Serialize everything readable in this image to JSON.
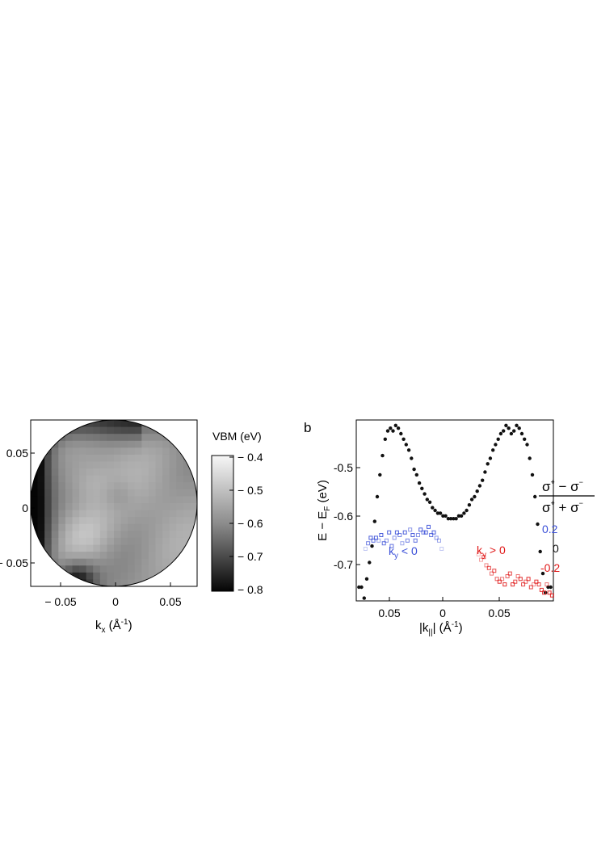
{
  "panel_a": {
    "xlabel_main": "k",
    "xlabel_sub": "x",
    "xlabel_unit_pre": " (Å",
    "xlabel_unit_exp": "-1",
    "xlabel_unit_post": ")",
    "xticks": [
      "− 0.05",
      "0",
      "0.05"
    ],
    "yticks": [
      "0.05",
      "0",
      "− 0.05"
    ],
    "colorbar_title": "VBM (eV)",
    "colorbar_ticks": [
      "− 0.4",
      "− 0.5",
      "− 0.6",
      "− 0.7",
      "− 0.8"
    ]
  },
  "panel_b": {
    "label": "b",
    "ylabel_main": "E − E",
    "ylabel_sub": "F",
    "ylabel_unit": " (eV)",
    "xlabel_pre": "|k",
    "xlabel_sub": "||",
    "xlabel_post": "| (Å",
    "xlabel_exp": "-1",
    "xlabel_end": ")",
    "yticks": [
      "-0.5",
      "-0.6",
      "-0.7"
    ],
    "xticks": [
      "0.05",
      "0",
      "0.05"
    ],
    "annot_left_main": "k",
    "annot_left_sub": "y",
    "annot_left_rest": " < 0",
    "annot_right_main": "k",
    "annot_right_sub": "y",
    "annot_right_rest": " > 0",
    "colors": {
      "blue": "#3a4fd8",
      "red": "#e01818",
      "black": "#111111"
    }
  },
  "pol_legend": {
    "num_a": "σ",
    "num_op": " − σ",
    "den_a": "σ",
    "den_op": " + σ",
    "sup_plus": "+",
    "sup_minus": "−",
    "vals": [
      "0.2",
      "0",
      "-0.2"
    ]
  },
  "chart_data": [
    {
      "type": "heatmap",
      "xlabel": "kx (Å-1)",
      "colorbar_label": "VBM (eV)",
      "colorbar_range": [
        -0.8,
        -0.4
      ],
      "xlim": [
        -0.08,
        0.08
      ],
      "ylim": [
        -0.08,
        0.08
      ],
      "grid_size": 24,
      "values": "VBM map inside circular k-region; darker = lower VBM (about -0.8 eV at left edge), lighter = about -0.4 eV"
    },
    {
      "type": "scatter",
      "xlabel": "|k||| (Å-1)",
      "ylabel": "E − EF (eV)",
      "xlim": [
        -0.075,
        0.075
      ],
      "ylim": [
        -0.75,
        -0.42
      ],
      "series": [
        {
          "name": "",
          "marker": "filled-circle",
          "x": [
            -0.073,
            -0.071,
            -0.069,
            -0.067,
            -0.065,
            -0.063,
            -0.061,
            -0.059,
            -0.057,
            -0.055,
            -0.053,
            -0.051,
            -0.049,
            -0.047,
            -0.045,
            -0.043,
            -0.041,
            -0.039,
            -0.037,
            -0.035,
            -0.033,
            -0.031,
            -0.029,
            -0.027,
            -0.025,
            -0.023,
            -0.021,
            -0.019,
            -0.017,
            -0.015,
            -0.013,
            -0.011,
            -0.009,
            -0.007,
            -0.005,
            -0.003,
            -0.001,
            0.001,
            0.003,
            0.005,
            0.007,
            0.009,
            0.011,
            0.013,
            0.015,
            0.017,
            0.019,
            0.021,
            0.023,
            0.025,
            0.027,
            0.029,
            0.031,
            0.033,
            0.035,
            0.037,
            0.039,
            0.041,
            0.043,
            0.045,
            0.047,
            0.049,
            0.051,
            0.053,
            0.055,
            0.057,
            0.059,
            0.061,
            0.063,
            0.065,
            0.067,
            0.069,
            0.071,
            0.073
          ],
          "y": [
            -0.725,
            -0.725,
            -0.745,
            -0.71,
            -0.68,
            -0.65,
            -0.605,
            -0.56,
            -0.52,
            -0.485,
            -0.455,
            -0.44,
            -0.435,
            -0.44,
            -0.43,
            -0.435,
            -0.445,
            -0.455,
            -0.465,
            -0.475,
            -0.49,
            -0.51,
            -0.52,
            -0.535,
            -0.545,
            -0.555,
            -0.565,
            -0.57,
            -0.58,
            -0.585,
            -0.59,
            -0.59,
            -0.595,
            -0.595,
            -0.6,
            -0.6,
            -0.6,
            -0.6,
            -0.595,
            -0.595,
            -0.59,
            -0.585,
            -0.575,
            -0.565,
            -0.56,
            -0.55,
            -0.54,
            -0.53,
            -0.515,
            -0.5,
            -0.49,
            -0.475,
            -0.465,
            -0.455,
            -0.445,
            -0.44,
            -0.43,
            -0.435,
            -0.445,
            -0.44,
            -0.43,
            -0.435,
            -0.445,
            -0.455,
            -0.465,
            -0.49,
            -0.52,
            -0.56,
            -0.61,
            -0.66,
            -0.7,
            -0.735,
            -0.725,
            -0.725
          ]
        },
        {
          "name": "ky < 0",
          "marker": "open-square",
          "color": "#3a4fd8",
          "x": [
            -0.068,
            -0.066,
            -0.064,
            -0.062,
            -0.06,
            -0.058,
            -0.056,
            -0.054,
            -0.052,
            -0.05,
            -0.048,
            -0.046,
            -0.044,
            -0.042,
            -0.04,
            -0.038,
            -0.036,
            -0.034,
            -0.032,
            -0.03,
            -0.028,
            -0.026,
            -0.024,
            -0.022,
            -0.02,
            -0.018,
            -0.016,
            -0.014,
            -0.012,
            -0.01
          ],
          "y": [
            -0.655,
            -0.645,
            -0.635,
            -0.64,
            -0.635,
            -0.64,
            -0.63,
            -0.645,
            -0.64,
            -0.625,
            -0.65,
            -0.635,
            -0.625,
            -0.63,
            -0.645,
            -0.625,
            -0.64,
            -0.62,
            -0.63,
            -0.64,
            -0.63,
            -0.62,
            -0.625,
            -0.625,
            -0.615,
            -0.63,
            -0.625,
            -0.635,
            -0.64,
            -0.655
          ],
          "alpha": [
            0.3,
            0.7,
            0.9,
            0.8,
            0.9,
            0.5,
            0.9,
            0.8,
            0.6,
            0.9,
            0.8,
            0.6,
            0.9,
            0.7,
            0.5,
            0.9,
            0.7,
            0.6,
            0.9,
            0.8,
            0.6,
            0.9,
            0.7,
            0.9,
            0.9,
            0.8,
            0.9,
            0.6,
            0.5,
            0.3
          ]
        },
        {
          "name": "ky > 0",
          "marker": "open-square",
          "color": "#e01818",
          "x": [
            0.018,
            0.02,
            0.022,
            0.024,
            0.026,
            0.028,
            0.03,
            0.032,
            0.034,
            0.036,
            0.038,
            0.04,
            0.042,
            0.044,
            0.046,
            0.048,
            0.05,
            0.052,
            0.054,
            0.056,
            0.058,
            0.06,
            0.062,
            0.064,
            0.066,
            0.068,
            0.07,
            0.072,
            0.074
          ],
          "y": [
            -0.665,
            -0.675,
            -0.67,
            -0.685,
            -0.69,
            -0.7,
            -0.695,
            -0.71,
            -0.715,
            -0.71,
            -0.72,
            -0.705,
            -0.7,
            -0.72,
            -0.715,
            -0.705,
            -0.71,
            -0.72,
            -0.715,
            -0.71,
            -0.725,
            -0.72,
            -0.715,
            -0.72,
            -0.73,
            -0.735,
            -0.72,
            -0.735,
            -0.74
          ],
          "alpha": [
            0.3,
            0.4,
            0.7,
            0.5,
            0.8,
            0.6,
            0.8,
            0.7,
            0.9,
            0.6,
            0.9,
            0.7,
            0.8,
            0.9,
            0.8,
            0.6,
            0.9,
            0.8,
            0.7,
            0.9,
            0.8,
            0.5,
            0.9,
            0.8,
            0.9,
            0.9,
            0.6,
            0.9,
            0.9
          ]
        }
      ]
    }
  ]
}
